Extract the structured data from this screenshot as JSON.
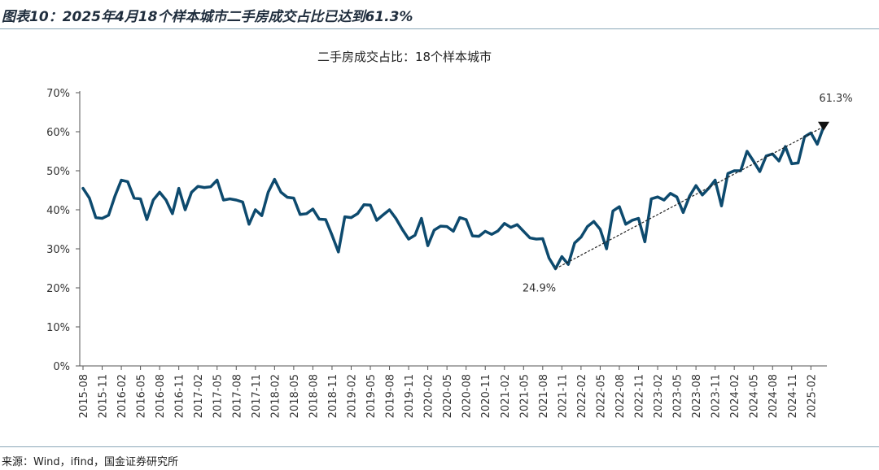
{
  "figure": {
    "title": "图表10：2025年4月18个样本城市二手房成交占比已达到61.3%",
    "source": "来源：Wind，ifind，国金证券研究所"
  },
  "colors": {
    "line": "#0d4a6e",
    "trend": "#222222",
    "marker": "#111111",
    "axis": "#555555"
  },
  "chart_data": {
    "type": "line",
    "title": "二手房成交占比：18个样本城市",
    "xlabel": "",
    "ylabel": "",
    "ylim": [
      0,
      70
    ],
    "y_ticks": [
      "0%",
      "10%",
      "20%",
      "30%",
      "40%",
      "50%",
      "60%",
      "70%"
    ],
    "x_tick_labels": [
      "2015-08",
      "2015-11",
      "2016-02",
      "2016-05",
      "2016-08",
      "2016-11",
      "2017-02",
      "2017-05",
      "2017-08",
      "2017-11",
      "2018-02",
      "2018-05",
      "2018-08",
      "2018-11",
      "2019-02",
      "2019-05",
      "2019-08",
      "2019-11",
      "2020-02",
      "2020-05",
      "2020-08",
      "2020-11",
      "2021-02",
      "2021-05",
      "2021-08",
      "2021-11",
      "2022-02",
      "2022-05",
      "2022-08",
      "2022-11",
      "2023-02",
      "2023-05",
      "2023-08",
      "2023-11",
      "2024-02",
      "2024-05",
      "2024-08",
      "2024-11",
      "2025-02"
    ],
    "grid": false,
    "legend": "none",
    "x_start": "2015-08",
    "x_end": "2025-04",
    "series": [
      {
        "values": [
          45.5,
          43.0,
          38.0,
          37.8,
          38.6,
          43.5,
          47.6,
          47.2,
          43.0,
          42.8,
          37.5,
          42.5,
          44.5,
          42.5,
          39.0,
          45.5,
          40.0,
          44.5,
          46.0,
          45.7,
          45.9,
          47.6,
          42.5,
          42.8,
          42.5,
          42.0,
          36.3,
          40.0,
          38.5,
          44.5,
          47.8,
          44.5,
          43.2,
          43.0,
          38.8,
          39.0,
          40.2,
          37.6,
          37.5,
          33.5,
          29.2,
          38.2,
          38.0,
          39.0,
          41.3,
          41.2,
          37.3,
          38.7,
          40.0,
          37.8,
          35.0,
          32.5,
          33.5,
          37.8,
          30.8,
          34.8,
          35.8,
          35.7,
          34.5,
          38.0,
          37.5,
          33.3,
          33.2,
          34.5,
          33.7,
          34.6,
          36.5,
          35.5,
          36.2,
          34.5,
          32.8,
          32.5,
          32.6,
          27.6,
          24.9,
          28.0,
          26.0,
          31.5,
          33.0,
          35.7,
          37.0,
          35.0,
          30.0,
          39.7,
          40.8,
          36.3,
          37.3,
          37.8,
          31.8,
          42.8,
          43.3,
          42.5,
          44.2,
          43.3,
          39.3,
          43.5,
          46.2,
          43.8,
          45.5,
          47.6,
          41.0,
          49.3,
          50.0,
          50.0,
          55.0,
          52.5,
          49.8,
          53.8,
          54.3,
          52.5,
          56.2,
          51.8,
          52.0,
          58.7,
          59.7,
          56.8,
          61.3
        ]
      }
    ],
    "annotations": [
      {
        "label": "24.9%",
        "x": "2021-10",
        "y": 24.9
      },
      {
        "label": "61.3%",
        "x": "2025-04",
        "y": 61.3
      }
    ],
    "trendline": {
      "from": {
        "x": "2021-10",
        "y": 24.9
      },
      "to": {
        "x": "2025-04",
        "y": 61.3
      }
    }
  }
}
